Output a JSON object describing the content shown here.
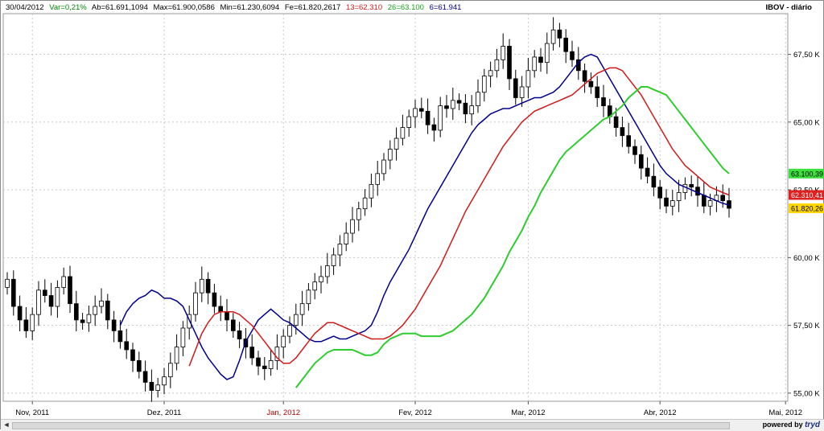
{
  "header": {
    "date": "30/04/2012",
    "var": "Var=0,21%",
    "ab": "Ab=61.691,1094",
    "max": "Max=61.900,0586",
    "min": "Min=61.230,6094",
    "fe": "Fe=61.820,2617",
    "ma13": "13=62.310",
    "ma26": "26=63.100",
    "ma6": "6=61.941",
    "symbol": "IBOV - diário"
  },
  "colors": {
    "ma6": "#00008b",
    "ma13": "#d11a1a",
    "ma26": "#2ecc2e",
    "candle": "#000000",
    "grid": "#c8c8c8",
    "badge_ma26": "#3ee03e",
    "badge_ma13": "#e01f1f",
    "badge_close": "#ffd700"
  },
  "footer": {
    "scroll_left": "◄",
    "powered_label": "powered by",
    "brand": "tryd"
  },
  "chart_data": {
    "type": "line",
    "title": "IBOV - diário",
    "xlabel": "",
    "ylabel": "",
    "ylim": [
      54700,
      69000
    ],
    "y_ticks": [
      {
        "value": 55000,
        "label": "55,00 K"
      },
      {
        "value": 57500,
        "label": "57,50 K"
      },
      {
        "value": 60000,
        "label": "60,00 K"
      },
      {
        "value": 62500,
        "label": "62,50 K"
      },
      {
        "value": 65000,
        "label": "65,00 K"
      },
      {
        "value": 67500,
        "label": "67,50 K"
      }
    ],
    "x_ticks": [
      {
        "index": 4,
        "label": "Nov, 2011",
        "color": "#000000"
      },
      {
        "index": 25,
        "label": "Dez, 2011",
        "color": "#000000"
      },
      {
        "index": 44,
        "label": "Jan, 2012",
        "color": "#b00000"
      },
      {
        "index": 65,
        "label": "Fev, 2012",
        "color": "#000000"
      },
      {
        "index": 83,
        "label": "Mar, 2012",
        "color": "#000000"
      },
      {
        "index": 104,
        "label": "Abr, 2012",
        "color": "#000000"
      },
      {
        "index": 124,
        "label": "Mai, 2012",
        "color": "#000000"
      }
    ],
    "grid": true,
    "candles_close": [
      59200,
      58200,
      57700,
      57300,
      57900,
      58800,
      58600,
      58200,
      58900,
      59300,
      58300,
      57700,
      57600,
      57900,
      58200,
      58400,
      57700,
      57300,
      56900,
      56600,
      56200,
      55800,
      55400,
      55100,
      55300,
      55600,
      56100,
      56700,
      57400,
      57900,
      58700,
      59200,
      58700,
      58200,
      58000,
      57700,
      57300,
      57000,
      56700,
      56300,
      56000,
      55900,
      56200,
      56700,
      57100,
      57500,
      57900,
      58300,
      58800,
      59100,
      59300,
      59700,
      60100,
      60500,
      60900,
      61400,
      61800,
      62200,
      62700,
      63100,
      63600,
      64000,
      64400,
      64800,
      65200,
      65500,
      65400,
      64900,
      64700,
      65600,
      65500,
      65800,
      65700,
      65300,
      65600,
      66100,
      66700,
      66900,
      67300,
      67800,
      66600,
      65900,
      66300,
      66900,
      67400,
      67200,
      67900,
      68400,
      68100,
      67600,
      67300,
      66900,
      66500,
      66300,
      65900,
      65600,
      65200,
      64800,
      64500,
      64100,
      63800,
      63300,
      63000,
      62600,
      62200,
      61900,
      62100,
      62400,
      62700,
      62600,
      62300,
      61900,
      62100,
      62300,
      62100,
      61820
    ],
    "series": [
      {
        "name": "6",
        "color": "#00008b",
        "values": [
          57500,
          58000,
          58300,
          58500,
          58600,
          58800,
          58700,
          58500,
          58500,
          58400,
          58200,
          57700,
          57200,
          56700,
          56300,
          56000,
          55700,
          55500,
          55600,
          56200,
          56900,
          57300,
          57700,
          57900,
          58100,
          57900,
          57700,
          57600,
          57400,
          57200,
          57000,
          56900,
          56900,
          57000,
          57100,
          57000,
          57000,
          57100,
          57200,
          57300,
          57500,
          58000,
          58600,
          59100,
          59500,
          59900,
          60300,
          60800,
          61300,
          61800,
          62200,
          62600,
          63000,
          63400,
          63800,
          64200,
          64600,
          64900,
          65100,
          65300,
          65400,
          65500,
          65500,
          65600,
          65700,
          65800,
          65900,
          65900,
          66000,
          66100,
          66300,
          66600,
          66900,
          67200,
          67400,
          67500,
          67400,
          67000,
          66600,
          66200,
          65800,
          65400,
          65000,
          64600,
          64200,
          63800,
          63400,
          63100,
          62900,
          62700,
          62600,
          62500,
          62400,
          62300,
          62200,
          62100,
          62000,
          61941
        ]
      },
      {
        "name": "13",
        "color": "#d11a1a",
        "values": [
          56000,
          56600,
          57200,
          57600,
          57900,
          58000,
          58000,
          58000,
          57900,
          57700,
          57500,
          57200,
          56900,
          56600,
          56300,
          56100,
          56100,
          56300,
          56600,
          56900,
          57200,
          57400,
          57600,
          57600,
          57500,
          57400,
          57300,
          57200,
          57100,
          57000,
          57000,
          57000,
          57100,
          57300,
          57500,
          57800,
          58100,
          58500,
          58900,
          59300,
          59700,
          60200,
          60700,
          61200,
          61700,
          62100,
          62500,
          62900,
          63300,
          63700,
          64100,
          64400,
          64700,
          65000,
          65200,
          65400,
          65500,
          65600,
          65700,
          65800,
          65900,
          66000,
          66200,
          66400,
          66600,
          66800,
          66900,
          67000,
          67000,
          66900,
          66600,
          66300,
          66000,
          65600,
          65200,
          64800,
          64400,
          64000,
          63700,
          63400,
          63200,
          63000,
          62800,
          62600,
          62500,
          62400,
          62310
        ]
      },
      {
        "name": "26",
        "color": "#2ecc2e",
        "values": [
          55200,
          55500,
          55800,
          56100,
          56300,
          56500,
          56600,
          56600,
          56600,
          56600,
          56500,
          56400,
          56400,
          56500,
          56800,
          57000,
          57100,
          57200,
          57200,
          57200,
          57100,
          57100,
          57100,
          57100,
          57200,
          57300,
          57500,
          57700,
          57900,
          58200,
          58500,
          58900,
          59300,
          59700,
          60200,
          60600,
          61000,
          61500,
          61900,
          62400,
          62800,
          63200,
          63600,
          63900,
          64100,
          64300,
          64500,
          64700,
          64900,
          65100,
          65200,
          65400,
          65600,
          65900,
          66100,
          66300,
          66300,
          66200,
          66100,
          66000,
          65700,
          65400,
          65100,
          64800,
          64500,
          64200,
          63900,
          63600,
          63300,
          63100
        ]
      }
    ],
    "badges": [
      {
        "value": 63100,
        "label": "63.100,39",
        "color": "#3ee03e"
      },
      {
        "value": 62310,
        "label": "62.310,41",
        "color": "#e01f1f"
      },
      {
        "value": 61820,
        "label": "61.820,26",
        "color": "#ffd700"
      }
    ]
  }
}
